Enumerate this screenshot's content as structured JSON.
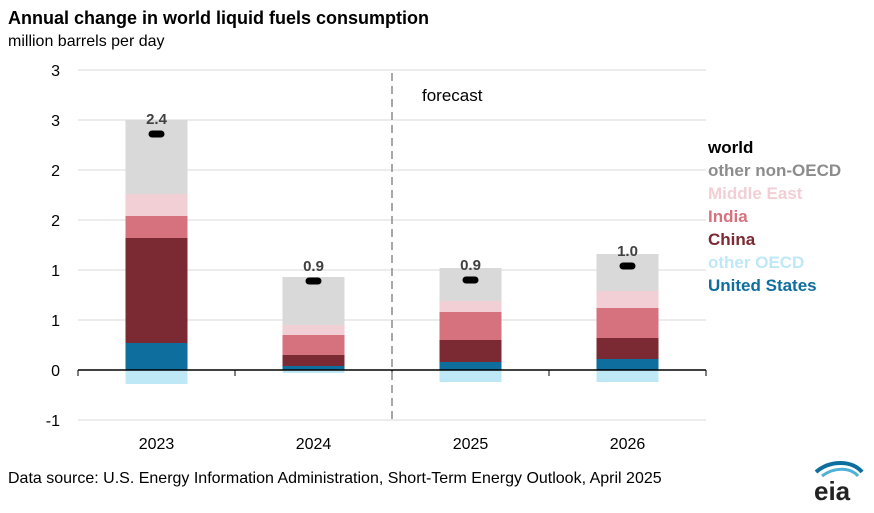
{
  "title": "Annual change in world liquid fuels consumption",
  "subtitle": "million barrels per day",
  "source": "Data source: U.S. Energy Information Administration, Short-Term Energy Outlook, April 2025",
  "logo_text": "eia",
  "chart_data": {
    "type": "bar",
    "stacked": true,
    "title": "Annual change in world liquid fuels consumption",
    "ylabel": "million barrels per day",
    "categories": [
      "2023",
      "2024",
      "2025",
      "2026"
    ],
    "ylim": [
      -0.5,
      3.0
    ],
    "y_ticks": [
      -0.5,
      0,
      0.5,
      1.0,
      1.5,
      2.0,
      2.5,
      3.0
    ],
    "y_tick_labels": [
      "-1",
      "0",
      "1",
      "1",
      "2",
      "2",
      "3",
      "3"
    ],
    "grid": true,
    "forecast_label": "forecast",
    "forecast_start_after": "2024",
    "legend_position": "right",
    "series": [
      {
        "name": "United States",
        "color": "#0e6e9e",
        "values": [
          0.27,
          0.04,
          0.08,
          0.11
        ]
      },
      {
        "name": "other OECD",
        "color": "#bfe8f7",
        "values": [
          -0.14,
          -0.03,
          -0.12,
          -0.12
        ]
      },
      {
        "name": "China",
        "color": "#7b2932",
        "values": [
          1.05,
          0.11,
          0.22,
          0.21
        ]
      },
      {
        "name": "India",
        "color": "#d6727e",
        "values": [
          0.22,
          0.2,
          0.28,
          0.3
        ]
      },
      {
        "name": "Middle East",
        "color": "#f2cfd4",
        "values": [
          0.22,
          0.1,
          0.11,
          0.17
        ]
      },
      {
        "name": "other non-OECD",
        "color": "#d9d9d9",
        "values": [
          0.74,
          0.48,
          0.33,
          0.37
        ]
      }
    ],
    "world": {
      "name": "world",
      "color": "#000000",
      "values": [
        2.36,
        0.89,
        0.9,
        1.04
      ],
      "labels": [
        "2.4",
        "0.9",
        "0.9",
        "1.0"
      ]
    }
  }
}
